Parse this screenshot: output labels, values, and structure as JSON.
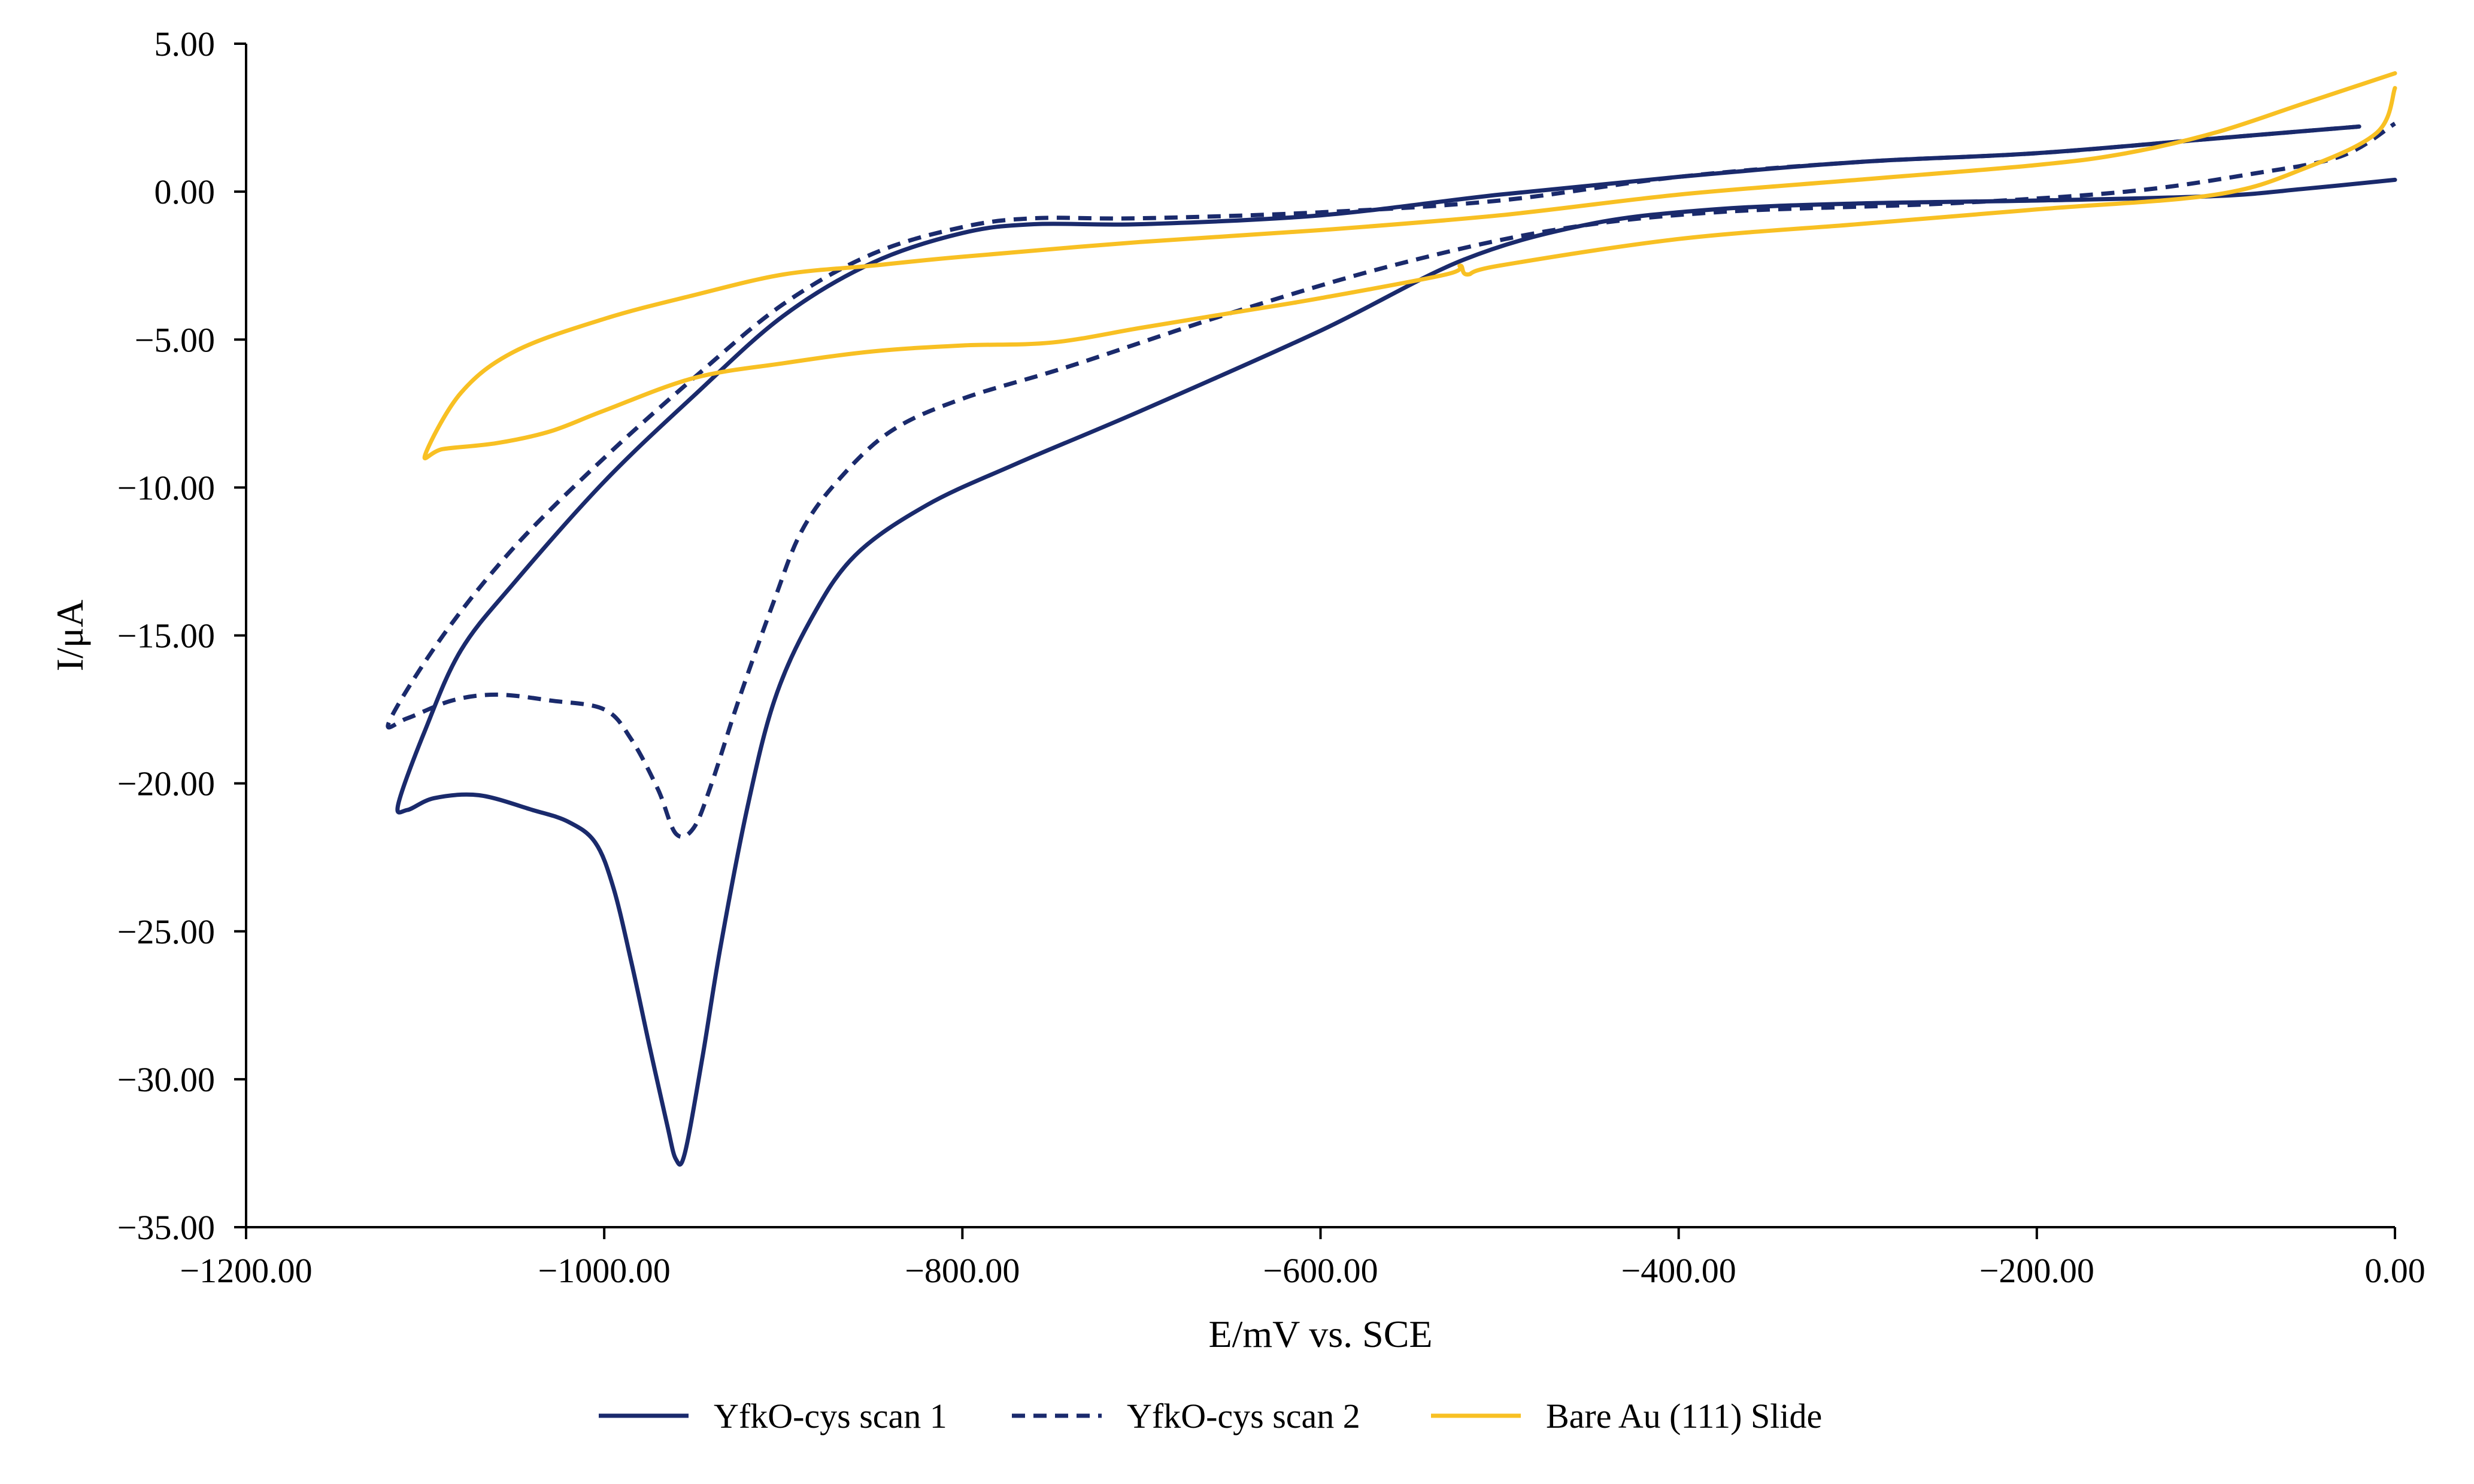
{
  "chart_data": {
    "type": "line",
    "title": "",
    "xlabel": "E/mV vs. SCE",
    "ylabel": "I/μA",
    "xlim": [
      -1200,
      0
    ],
    "ylim": [
      -35,
      5
    ],
    "x_ticks": [
      -1200,
      -1000,
      -800,
      -600,
      -400,
      -200,
      0
    ],
    "x_tick_labels": [
      "−1200.00",
      "−1000.00",
      "−800.00",
      "−600.00",
      "−400.00",
      "−200.00",
      "0.00"
    ],
    "y_ticks": [
      5,
      0,
      -5,
      -10,
      -15,
      -20,
      -25,
      -30,
      -35
    ],
    "y_tick_labels": [
      "5.00",
      "0.00",
      "−5.00",
      "−10.00",
      "−15.00",
      "−20.00",
      "−25.00",
      "−30.00",
      "−35.00"
    ],
    "grid": false,
    "legend_position": "bottom",
    "series": [
      {
        "name": "YfkO-cys scan 1",
        "color": "#1a2a6c",
        "dash": "solid",
        "points": [
          [
            -20,
            2.2
          ],
          [
            -100,
            1.8
          ],
          [
            -200,
            1.3
          ],
          [
            -300,
            1.0
          ],
          [
            -400,
            0.5
          ],
          [
            -500,
            -0.1
          ],
          [
            -600,
            -0.8
          ],
          [
            -700,
            -1.1
          ],
          [
            -760,
            -1.1
          ],
          [
            -800,
            -1.4
          ],
          [
            -850,
            -2.4
          ],
          [
            -900,
            -4.2
          ],
          [
            -950,
            -6.9
          ],
          [
            -1000,
            -9.8
          ],
          [
            -1050,
            -13.2
          ],
          [
            -1080,
            -15.5
          ],
          [
            -1100,
            -18.2
          ],
          [
            -1115,
            -20.7
          ],
          [
            -1110,
            -20.9
          ],
          [
            -1095,
            -20.5
          ],
          [
            -1070,
            -20.4
          ],
          [
            -1040,
            -20.9
          ],
          [
            -1020,
            -21.3
          ],
          [
            -1005,
            -22.0
          ],
          [
            -995,
            -23.5
          ],
          [
            -985,
            -26.0
          ],
          [
            -975,
            -28.8
          ],
          [
            -965,
            -31.5
          ],
          [
            -960,
            -32.7
          ],
          [
            -955,
            -32.5
          ],
          [
            -945,
            -29.2
          ],
          [
            -935,
            -25.5
          ],
          [
            -920,
            -20.8
          ],
          [
            -905,
            -17.2
          ],
          [
            -885,
            -14.5
          ],
          [
            -860,
            -12.3
          ],
          [
            -820,
            -10.6
          ],
          [
            -770,
            -9.2
          ],
          [
            -700,
            -7.4
          ],
          [
            -600,
            -4.7
          ],
          [
            -520,
            -2.3
          ],
          [
            -450,
            -1.1
          ],
          [
            -380,
            -0.6
          ],
          [
            -300,
            -0.4
          ],
          [
            -200,
            -0.3
          ],
          [
            -100,
            -0.15
          ],
          [
            -50,
            0.1
          ],
          [
            0,
            0.4
          ]
        ]
      },
      {
        "name": "YfkO-cys scan 2",
        "color": "#1a2a6c",
        "dash": "dashed",
        "points": [
          [
            -20,
            2.2
          ],
          [
            -100,
            1.8
          ],
          [
            -200,
            1.3
          ],
          [
            -300,
            1.0
          ],
          [
            -400,
            0.5
          ],
          [
            -500,
            -0.3
          ],
          [
            -600,
            -0.7
          ],
          [
            -700,
            -0.9
          ],
          [
            -760,
            -0.9
          ],
          [
            -800,
            -1.2
          ],
          [
            -850,
            -2.1
          ],
          [
            -900,
            -3.8
          ],
          [
            -950,
            -6.3
          ],
          [
            -1000,
            -9.0
          ],
          [
            -1050,
            -12.0
          ],
          [
            -1090,
            -15.0
          ],
          [
            -1120,
            -17.9
          ],
          [
            -1110,
            -17.8
          ],
          [
            -1085,
            -17.2
          ],
          [
            -1060,
            -17.0
          ],
          [
            -1030,
            -17.2
          ],
          [
            -1000,
            -17.5
          ],
          [
            -985,
            -18.5
          ],
          [
            -970,
            -20.2
          ],
          [
            -960,
            -21.7
          ],
          [
            -950,
            -21.5
          ],
          [
            -940,
            -20.0
          ],
          [
            -925,
            -17.2
          ],
          [
            -905,
            -13.8
          ],
          [
            -890,
            -11.5
          ],
          [
            -870,
            -9.8
          ],
          [
            -840,
            -8.1
          ],
          [
            -800,
            -7.0
          ],
          [
            -740,
            -5.9
          ],
          [
            -650,
            -4.1
          ],
          [
            -560,
            -2.5
          ],
          [
            -470,
            -1.3
          ],
          [
            -380,
            -0.7
          ],
          [
            -250,
            -0.4
          ],
          [
            -150,
            0.0
          ],
          [
            -80,
            0.6
          ],
          [
            -30,
            1.2
          ],
          [
            0,
            2.3
          ]
        ]
      },
      {
        "name": "Bare Au (111) Slide",
        "color": "#f8c023",
        "dash": "solid",
        "points": [
          [
            0,
            4.0
          ],
          [
            -50,
            3.0
          ],
          [
            -100,
            2.0
          ],
          [
            -150,
            1.3
          ],
          [
            -200,
            0.9
          ],
          [
            -300,
            0.4
          ],
          [
            -400,
            -0.1
          ],
          [
            -500,
            -0.8
          ],
          [
            -600,
            -1.3
          ],
          [
            -700,
            -1.7
          ],
          [
            -800,
            -2.2
          ],
          [
            -850,
            -2.5
          ],
          [
            -900,
            -2.8
          ],
          [
            -950,
            -3.5
          ],
          [
            -1000,
            -4.3
          ],
          [
            -1050,
            -5.4
          ],
          [
            -1080,
            -6.8
          ],
          [
            -1100,
            -8.9
          ],
          [
            -1090,
            -8.7
          ],
          [
            -1060,
            -8.5
          ],
          [
            -1030,
            -8.1
          ],
          [
            -1000,
            -7.4
          ],
          [
            -950,
            -6.3
          ],
          [
            -900,
            -5.8
          ],
          [
            -850,
            -5.4
          ],
          [
            -800,
            -5.2
          ],
          [
            -750,
            -5.1
          ],
          [
            -700,
            -4.6
          ],
          [
            -650,
            -4.1
          ],
          [
            -600,
            -3.6
          ],
          [
            -530,
            -2.8
          ],
          [
            -522,
            -2.5
          ],
          [
            -518,
            -2.8
          ],
          [
            -500,
            -2.5
          ],
          [
            -400,
            -1.6
          ],
          [
            -300,
            -1.1
          ],
          [
            -200,
            -0.6
          ],
          [
            -100,
            -0.1
          ],
          [
            -50,
            0.8
          ],
          [
            -10,
            2.0
          ],
          [
            0,
            3.5
          ]
        ]
      }
    ]
  }
}
